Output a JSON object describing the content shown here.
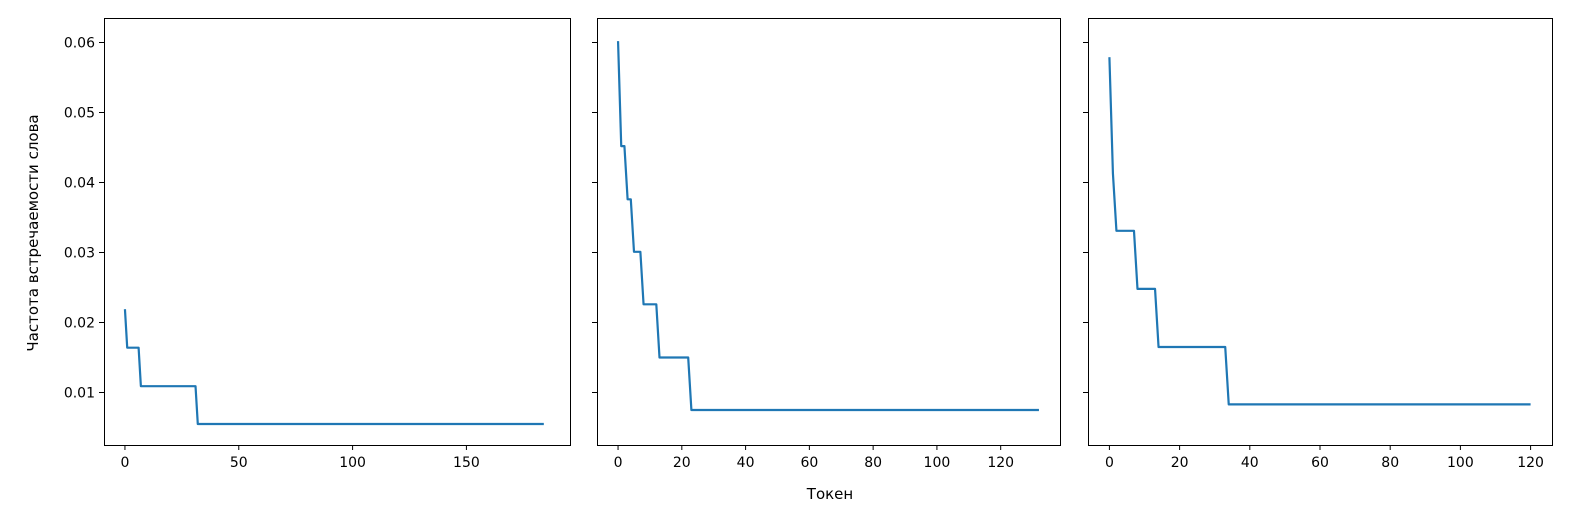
{
  "chart_data": {
    "type": "line",
    "shared_y": true,
    "ylabel": "Частота встречаемости слова",
    "xlabel": "Токен",
    "line_color": "#1f77b4",
    "grid": false,
    "y_ticks": [
      0.01,
      0.02,
      0.03,
      0.04,
      0.05,
      0.06
    ],
    "y_tick_labels": [
      "0.01",
      "0.02",
      "0.03",
      "0.04",
      "0.05",
      "0.06"
    ],
    "ylim": [
      0.0025,
      0.0635
    ],
    "panels": [
      {
        "xlim": [
          -9.2,
          195.5
        ],
        "x_ticks": [
          0,
          50,
          100,
          150
        ],
        "x_tick_labels": [
          "0",
          "50",
          "100",
          "150"
        ],
        "series": [
          {
            "x": [
              0,
              1,
              6,
              7,
              31,
              32,
              184
            ],
            "y": [
              0.0219,
              0.0164,
              0.0164,
              0.0109,
              0.0109,
              0.0055,
              0.0055
            ]
          }
        ]
      },
      {
        "xlim": [
          -6.6,
          138.6
        ],
        "x_ticks": [
          0,
          20,
          40,
          60,
          80,
          100,
          120
        ],
        "x_tick_labels": [
          "0",
          "20",
          "40",
          "60",
          "80",
          "100",
          "120"
        ],
        "series": [
          {
            "x": [
              0,
              1,
              2,
              3,
              4,
              5,
              7,
              8,
              12,
              13,
              22,
              23,
              132
            ],
            "y": [
              0.0602,
              0.0452,
              0.0452,
              0.0376,
              0.0376,
              0.0301,
              0.0301,
              0.0226,
              0.0226,
              0.015,
              0.015,
              0.0075,
              0.0075
            ]
          }
        ]
      },
      {
        "xlim": [
          -6.1,
          126.1
        ],
        "x_ticks": [
          0,
          20,
          40,
          60,
          80,
          100,
          120
        ],
        "x_tick_labels": [
          "0",
          "20",
          "40",
          "60",
          "80",
          "100",
          "120"
        ],
        "series": [
          {
            "x": [
              0,
              1,
              2,
              7,
              8,
              13,
              14,
              33,
              34,
              120
            ],
            "y": [
              0.0579,
              0.0413,
              0.0331,
              0.0331,
              0.0248,
              0.0248,
              0.0165,
              0.0165,
              0.0083,
              0.0083
            ]
          }
        ]
      }
    ]
  }
}
